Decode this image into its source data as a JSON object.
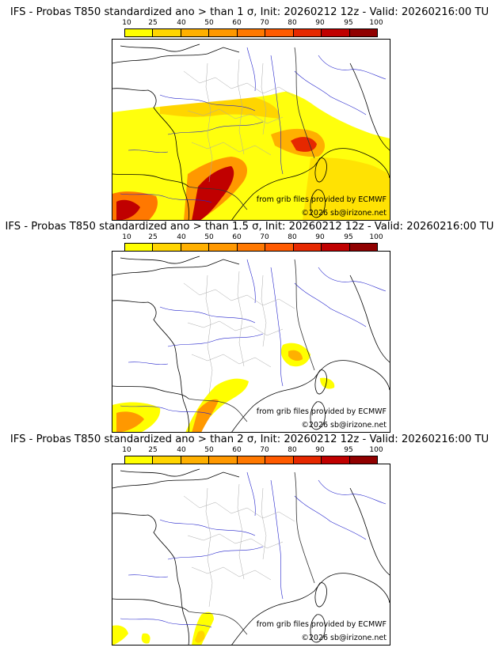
{
  "legend": {
    "ticks": [
      "10",
      "25",
      "40",
      "50",
      "60",
      "70",
      "80",
      "90",
      "95",
      "100"
    ],
    "colors": [
      "#ffff00",
      "#ffd500",
      "#ffb000",
      "#ff9800",
      "#ff7800",
      "#ff5a00",
      "#e62800",
      "#c00000",
      "#900000",
      "#5a0000"
    ]
  },
  "panels": [
    {
      "title": "IFS - Probas T850  standardized ano > than 1 σ, Init: 20260212 12z - Valid: 20260216:00 TU",
      "source": "from grib files provided by ECMWF",
      "copyright": "©2026 sb@irizone.net"
    },
    {
      "title": "IFS - Probas T850  standardized ano > than 1.5 σ, Init: 20260212 12z - Valid: 20260216:00 TU",
      "source": "from grib files provided by ECMWF",
      "copyright": "©2026 sb@irizone.net"
    },
    {
      "title": "IFS - Probas T850  standardized ano > than 2 σ, Init: 20260212 12z - Valid: 20260216:00 TU",
      "source": "from grib files provided by ECMWF",
      "copyright": "©2026 sb@irizone.net"
    }
  ]
}
